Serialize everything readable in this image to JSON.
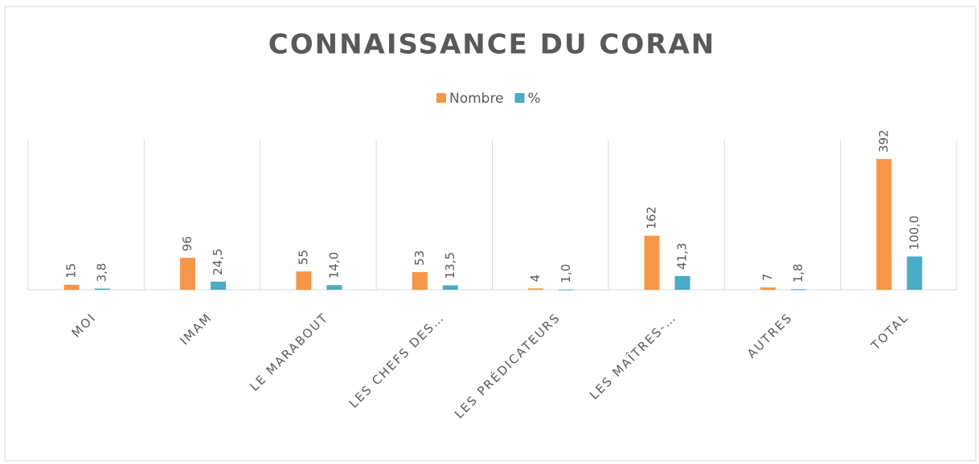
{
  "chart_data": {
    "type": "bar",
    "title": "CONNAISSANCE  DU  CORAN",
    "categories": [
      "MOI",
      "IMAM",
      "LE MARABOUT",
      "LES CHEFS DES…",
      "LES PRÉDICATEURS",
      "LES MAÎTRES-…",
      "AUTRES",
      "TOTAL"
    ],
    "series": [
      {
        "name": "Nombre",
        "color": "#f79646",
        "values": [
          15,
          96,
          55,
          53,
          4,
          162,
          7,
          392
        ]
      },
      {
        "name": "%",
        "color": "#4bacc6",
        "values": [
          3.8,
          24.5,
          14.0,
          13.5,
          1.0,
          41.3,
          1.8,
          100.0
        ],
        "value_labels": [
          "3,8",
          "24,5",
          "14,0",
          "13,5",
          "1,0",
          "41,3",
          "1,8",
          "100,0"
        ]
      }
    ],
    "ylim": [
      0,
      450
    ],
    "legend": "top"
  }
}
